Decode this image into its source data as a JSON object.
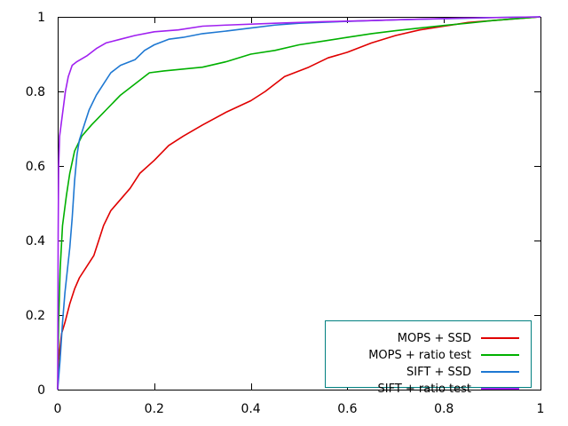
{
  "chart_data": {
    "type": "line",
    "title": "",
    "xlabel": "",
    "ylabel": "",
    "xlim": [
      0,
      1
    ],
    "ylim": [
      0,
      1
    ],
    "x_ticks": [
      "0",
      "0.2",
      "0.4",
      "0.6",
      "0.8",
      "1"
    ],
    "y_ticks": [
      "0",
      "0.2",
      "0.4",
      "0.6",
      "0.8",
      "1"
    ],
    "x_tick_values": [
      0,
      0.2,
      0.4,
      0.6,
      0.8,
      1
    ],
    "y_tick_values": [
      0,
      0.2,
      0.4,
      0.6,
      0.8,
      1
    ],
    "grid": false,
    "legend_position": "bottom-right",
    "series": [
      {
        "name": "MOPS + SSD",
        "color": "#e00000",
        "points": [
          [
            0,
            0
          ],
          [
            0.002,
            0.08
          ],
          [
            0.008,
            0.15
          ],
          [
            0.015,
            0.18
          ],
          [
            0.025,
            0.23
          ],
          [
            0.035,
            0.27
          ],
          [
            0.045,
            0.3
          ],
          [
            0.06,
            0.33
          ],
          [
            0.075,
            0.36
          ],
          [
            0.085,
            0.4
          ],
          [
            0.095,
            0.44
          ],
          [
            0.11,
            0.48
          ],
          [
            0.13,
            0.51
          ],
          [
            0.15,
            0.54
          ],
          [
            0.17,
            0.58
          ],
          [
            0.2,
            0.615
          ],
          [
            0.23,
            0.655
          ],
          [
            0.26,
            0.68
          ],
          [
            0.3,
            0.71
          ],
          [
            0.35,
            0.745
          ],
          [
            0.4,
            0.775
          ],
          [
            0.43,
            0.8
          ],
          [
            0.47,
            0.84
          ],
          [
            0.52,
            0.865
          ],
          [
            0.56,
            0.89
          ],
          [
            0.6,
            0.905
          ],
          [
            0.65,
            0.93
          ],
          [
            0.7,
            0.95
          ],
          [
            0.75,
            0.965
          ],
          [
            0.8,
            0.975
          ],
          [
            0.85,
            0.985
          ],
          [
            0.9,
            0.99
          ],
          [
            0.95,
            0.995
          ],
          [
            1,
            1
          ]
        ]
      },
      {
        "name": "MOPS + ratio test",
        "color": "#00b000",
        "points": [
          [
            0,
            0
          ],
          [
            0.002,
            0.18
          ],
          [
            0.005,
            0.32
          ],
          [
            0.01,
            0.44
          ],
          [
            0.018,
            0.52
          ],
          [
            0.025,
            0.58
          ],
          [
            0.035,
            0.64
          ],
          [
            0.05,
            0.68
          ],
          [
            0.07,
            0.71
          ],
          [
            0.1,
            0.75
          ],
          [
            0.13,
            0.79
          ],
          [
            0.16,
            0.82
          ],
          [
            0.19,
            0.85
          ],
          [
            0.22,
            0.855
          ],
          [
            0.26,
            0.86
          ],
          [
            0.3,
            0.865
          ],
          [
            0.35,
            0.88
          ],
          [
            0.4,
            0.9
          ],
          [
            0.45,
            0.91
          ],
          [
            0.5,
            0.925
          ],
          [
            0.55,
            0.935
          ],
          [
            0.6,
            0.945
          ],
          [
            0.65,
            0.955
          ],
          [
            0.7,
            0.963
          ],
          [
            0.75,
            0.97
          ],
          [
            0.8,
            0.977
          ],
          [
            0.85,
            0.983
          ],
          [
            0.9,
            0.99
          ],
          [
            0.95,
            0.995
          ],
          [
            1,
            1
          ]
        ]
      },
      {
        "name": "SIFT + SSD",
        "color": "#1e78d2",
        "points": [
          [
            0,
            0
          ],
          [
            0.005,
            0.08
          ],
          [
            0.01,
            0.18
          ],
          [
            0.015,
            0.26
          ],
          [
            0.02,
            0.32
          ],
          [
            0.025,
            0.38
          ],
          [
            0.03,
            0.46
          ],
          [
            0.035,
            0.56
          ],
          [
            0.04,
            0.63
          ],
          [
            0.045,
            0.67
          ],
          [
            0.055,
            0.71
          ],
          [
            0.065,
            0.75
          ],
          [
            0.08,
            0.79
          ],
          [
            0.095,
            0.82
          ],
          [
            0.11,
            0.85
          ],
          [
            0.13,
            0.87
          ],
          [
            0.16,
            0.885
          ],
          [
            0.18,
            0.91
          ],
          [
            0.2,
            0.925
          ],
          [
            0.23,
            0.94
          ],
          [
            0.26,
            0.945
          ],
          [
            0.3,
            0.955
          ],
          [
            0.35,
            0.962
          ],
          [
            0.4,
            0.97
          ],
          [
            0.45,
            0.978
          ],
          [
            0.5,
            0.983
          ],
          [
            0.6,
            0.988
          ],
          [
            0.7,
            0.992
          ],
          [
            0.8,
            0.995
          ],
          [
            0.9,
            0.998
          ],
          [
            1,
            1
          ]
        ]
      },
      {
        "name": "SIFT + ratio test",
        "color": "#a020f0",
        "points": [
          [
            0,
            0
          ],
          [
            0.001,
            0.42
          ],
          [
            0.002,
            0.6
          ],
          [
            0.004,
            0.68
          ],
          [
            0.008,
            0.72
          ],
          [
            0.012,
            0.76
          ],
          [
            0.016,
            0.8
          ],
          [
            0.022,
            0.84
          ],
          [
            0.03,
            0.87
          ],
          [
            0.04,
            0.88
          ],
          [
            0.06,
            0.895
          ],
          [
            0.08,
            0.915
          ],
          [
            0.1,
            0.93
          ],
          [
            0.13,
            0.94
          ],
          [
            0.16,
            0.95
          ],
          [
            0.2,
            0.96
          ],
          [
            0.25,
            0.965
          ],
          [
            0.3,
            0.975
          ],
          [
            0.35,
            0.978
          ],
          [
            0.45,
            0.983
          ],
          [
            0.55,
            0.987
          ],
          [
            0.65,
            0.99
          ],
          [
            0.75,
            0.994
          ],
          [
            0.85,
            0.997
          ],
          [
            1,
            1
          ]
        ]
      }
    ]
  }
}
